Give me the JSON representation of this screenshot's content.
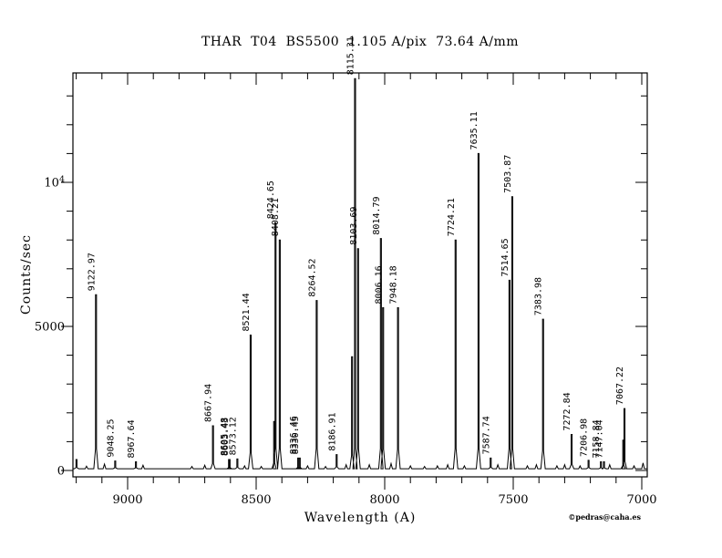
{
  "title": "THAR  T04  BS5500  1.105 A/pix  73.64 A/mm",
  "credit": "©pedras@caha.es",
  "chart_data": {
    "type": "line",
    "title": "THAR  T04  BS5500  1.105 A/pix  73.64 A/mm",
    "xlabel": "Wavelength (A)",
    "ylabel": "Counts/sec",
    "legend": false,
    "grid": false,
    "x_axis": {
      "reversed": true,
      "min": 6980,
      "max": 9210,
      "minor_step": 100,
      "ticks": [
        {
          "value": 9000,
          "label": "9000"
        },
        {
          "value": 8500,
          "label": "8500"
        },
        {
          "value": 8000,
          "label": "8000"
        },
        {
          "value": 7500,
          "label": "7500"
        },
        {
          "value": 7000,
          "label": "7000"
        }
      ]
    },
    "y_axis": {
      "min": -200,
      "max": 13800,
      "minor_step": 1000,
      "ticks": [
        {
          "value": 0,
          "label": "0"
        },
        {
          "value": 5000,
          "label": "5000"
        },
        {
          "value": 10000,
          "label": "10^4"
        }
      ]
    },
    "baseline_counts": 60,
    "peaks": [
      {
        "label": "9122.97",
        "wavelength": 9122.97,
        "counts": 6100
      },
      {
        "label": "9048.25",
        "wavelength": 9048.25,
        "counts": 330
      },
      {
        "label": "8967.64",
        "wavelength": 8967.64,
        "counts": 300
      },
      {
        "label": "8667.94",
        "wavelength": 8667.94,
        "counts": 1550
      },
      {
        "label": "8605.48",
        "wavelength": 8605.48,
        "counts": 380
      },
      {
        "label": "8603.43",
        "wavelength": 8603.43,
        "counts": 380
      },
      {
        "label": "8573.12",
        "wavelength": 8573.12,
        "counts": 400
      },
      {
        "label": "8521.44",
        "wavelength": 8521.44,
        "counts": 4700
      },
      {
        "label": "8424.65",
        "wavelength": 8424.65,
        "counts": 8600
      },
      {
        "label": "8408.21",
        "wavelength": 8408.21,
        "counts": 8000
      },
      {
        "label": "8336.46",
        "wavelength": 8336.46,
        "counts": 430
      },
      {
        "label": "8330.45",
        "wavelength": 8330.45,
        "counts": 430
      },
      {
        "label": "8264.52",
        "wavelength": 8264.52,
        "counts": 5900
      },
      {
        "label": "8186.91",
        "wavelength": 8186.91,
        "counts": 550
      },
      {
        "label": "8115.31",
        "wavelength": 8115.31,
        "counts": 13600
      },
      {
        "label": "8103.69",
        "wavelength": 8103.69,
        "counts": 7700
      },
      {
        "label": "8014.79",
        "wavelength": 8014.79,
        "counts": 8050
      },
      {
        "label": "8006.16",
        "wavelength": 8006.16,
        "counts": 5650
      },
      {
        "label": "7948.18",
        "wavelength": 7948.18,
        "counts": 5650
      },
      {
        "label": "7724.21",
        "wavelength": 7724.21,
        "counts": 8000
      },
      {
        "label": "7635.11",
        "wavelength": 7635.11,
        "counts": 11000
      },
      {
        "label": "7587.74",
        "wavelength": 7587.74,
        "counts": 430
      },
      {
        "label": "7514.65",
        "wavelength": 7514.65,
        "counts": 6600
      },
      {
        "label": "7503.87",
        "wavelength": 7503.87,
        "counts": 9500
      },
      {
        "label": "7383.98",
        "wavelength": 7383.98,
        "counts": 5250
      },
      {
        "label": "7272.84",
        "wavelength": 7272.84,
        "counts": 1250
      },
      {
        "label": "7206.98",
        "wavelength": 7206.98,
        "counts": 350
      },
      {
        "label": "7158.84",
        "wavelength": 7158.84,
        "counts": 300
      },
      {
        "label": "7147.04",
        "wavelength": 7147.04,
        "counts": 300
      },
      {
        "label": "7067.22",
        "wavelength": 7067.22,
        "counts": 2150
      }
    ],
    "unlabeled_peaks": [
      {
        "wavelength": 9199,
        "counts": 380
      },
      {
        "wavelength": 8430,
        "counts": 1700
      },
      {
        "wavelength": 8127,
        "counts": 3950
      },
      {
        "wavelength": 7072,
        "counts": 1050
      }
    ],
    "noise_bumps": [
      [
        9160,
        150
      ],
      [
        9090,
        220
      ],
      [
        8940,
        180
      ],
      [
        8750,
        140
      ],
      [
        8700,
        180
      ],
      [
        8545,
        160
      ],
      [
        8480,
        140
      ],
      [
        8300,
        160
      ],
      [
        8230,
        140
      ],
      [
        8150,
        200
      ],
      [
        8060,
        200
      ],
      [
        7975,
        240
      ],
      [
        7900,
        160
      ],
      [
        7845,
        140
      ],
      [
        7795,
        160
      ],
      [
        7755,
        200
      ],
      [
        7690,
        160
      ],
      [
        7560,
        200
      ],
      [
        7445,
        160
      ],
      [
        7410,
        200
      ],
      [
        7330,
        160
      ],
      [
        7300,
        200
      ],
      [
        7240,
        160
      ],
      [
        7125,
        200
      ],
      [
        7030,
        160
      ],
      [
        6995,
        260
      ]
    ]
  }
}
